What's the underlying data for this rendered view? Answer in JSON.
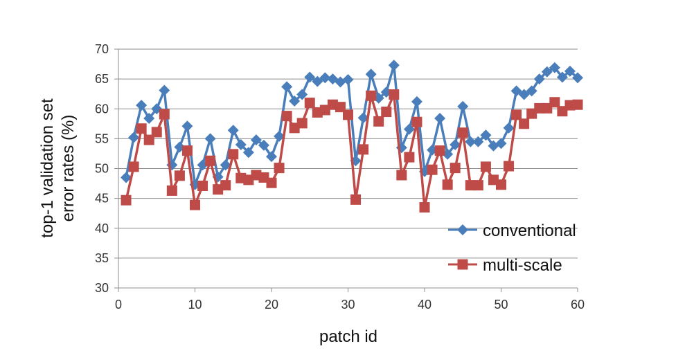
{
  "chart_data": {
    "type": "line",
    "title": "",
    "xlabel": "patch id",
    "ylabel_lines": [
      "top-1 validation set",
      "error rates (%)"
    ],
    "xlim": [
      0,
      60
    ],
    "ylim": [
      30,
      70
    ],
    "x_ticks": [
      0,
      10,
      20,
      30,
      40,
      50,
      60
    ],
    "y_ticks": [
      30,
      35,
      40,
      45,
      50,
      55,
      60,
      65,
      70
    ],
    "grid": "horizontal",
    "legend_position": "bottom-right",
    "x": [
      1,
      2,
      3,
      4,
      5,
      6,
      7,
      8,
      9,
      10,
      11,
      12,
      13,
      14,
      15,
      16,
      17,
      18,
      19,
      20,
      21,
      22,
      23,
      24,
      25,
      26,
      27,
      28,
      29,
      30,
      31,
      32,
      33,
      34,
      35,
      36,
      37,
      38,
      39,
      40,
      41,
      42,
      43,
      44,
      45,
      46,
      47,
      48,
      49,
      50,
      51,
      52,
      53,
      54,
      55,
      56,
      57,
      58,
      59,
      60
    ],
    "series": [
      {
        "name": "conventional",
        "color": "#4a7ebb",
        "marker": "diamond",
        "values": [
          48.5,
          55.2,
          60.6,
          58.4,
          60.0,
          63.1,
          50.6,
          53.6,
          57.1,
          47.3,
          50.6,
          55.0,
          48.6,
          50.6,
          56.4,
          54.0,
          52.7,
          54.8,
          53.9,
          52.0,
          55.4,
          63.7,
          61.3,
          62.4,
          65.3,
          64.6,
          65.2,
          65.0,
          64.5,
          64.9,
          51.3,
          58.5,
          65.8,
          61.8,
          62.8,
          67.3,
          53.5,
          56.6,
          61.2,
          49.5,
          53.1,
          58.4,
          52.4,
          54.0,
          60.4,
          54.5,
          54.5,
          55.6,
          53.8,
          54.2,
          56.8,
          63.0,
          62.4,
          63.0,
          65.0,
          66.2,
          66.9,
          65.3,
          66.3,
          65.2
        ]
      },
      {
        "name": "multi-scale",
        "color": "#be4b48",
        "marker": "square",
        "values": [
          44.7,
          50.3,
          56.7,
          54.8,
          56.1,
          59.1,
          46.3,
          48.8,
          53.0,
          43.9,
          47.1,
          51.3,
          46.5,
          47.2,
          52.4,
          48.4,
          48.1,
          48.9,
          48.5,
          47.6,
          50.1,
          58.8,
          56.8,
          57.6,
          61.0,
          59.4,
          59.8,
          60.7,
          60.3,
          59.0,
          44.8,
          53.2,
          62.2,
          57.9,
          59.5,
          62.4,
          48.9,
          51.9,
          57.8,
          43.5,
          49.8,
          53.0,
          47.3,
          50.1,
          56.0,
          47.2,
          47.2,
          50.3,
          48.1,
          47.3,
          50.4,
          59.0,
          57.5,
          59.2,
          60.1,
          60.1,
          61.1,
          59.6,
          60.6,
          60.7
        ]
      }
    ]
  }
}
